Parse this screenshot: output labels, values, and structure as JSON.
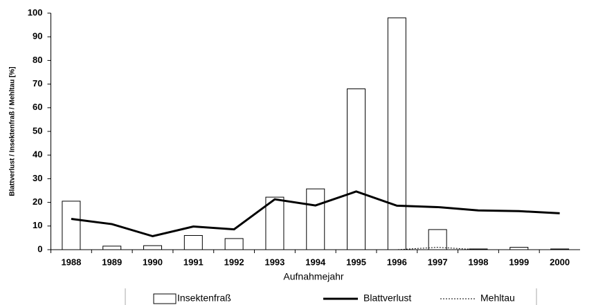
{
  "chart_data": {
    "type": "bar_line",
    "x_label": "Aufnahmejahr",
    "y_label": "Blattverlust / Insektenfraß / Mehltau [%]",
    "categories": [
      "1988",
      "1989",
      "1990",
      "1991",
      "1992",
      "1993",
      "1994",
      "1995",
      "1996",
      "1997",
      "1998",
      "1999",
      "2000"
    ],
    "series": [
      {
        "name": "Insektenfraß",
        "type": "bar",
        "color": "#ffffff",
        "values": [
          20.5,
          1.5,
          1.7,
          6,
          4.7,
          22.2,
          25.7,
          68,
          98,
          8.5,
          0.3,
          1,
          0.3
        ]
      },
      {
        "name": "Blattverlust",
        "type": "line",
        "color": "#000000",
        "values": [
          13,
          10.8,
          5.7,
          9.8,
          8.6,
          21.3,
          18.7,
          24.6,
          18.6,
          18,
          16.6,
          16.3,
          15.4
        ]
      },
      {
        "name": "Mehltau",
        "type": "dotted",
        "color": "#000000",
        "values": [
          0,
          0,
          0,
          0,
          0,
          0,
          0,
          0,
          0,
          1,
          0,
          0,
          0
        ]
      }
    ],
    "ylim": [
      0,
      100
    ],
    "yticks": [
      0,
      10,
      20,
      30,
      40,
      50,
      60,
      70,
      80,
      90,
      100
    ],
    "legend": "bottom"
  }
}
